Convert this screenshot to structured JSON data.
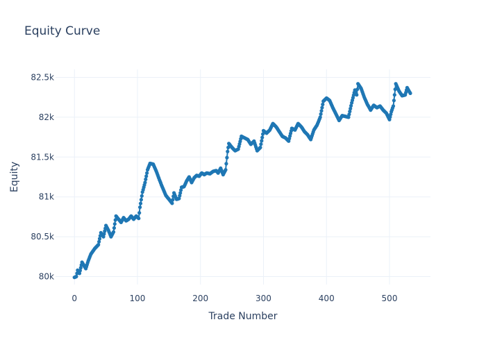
{
  "chart_data": {
    "type": "line",
    "title": "Equity Curve",
    "xlabel": "Trade Number",
    "ylabel": "Equity",
    "xlim": [
      -30,
      565
    ],
    "ylim": [
      79900,
      82600
    ],
    "xticks": [
      0,
      100,
      200,
      300,
      400,
      500
    ],
    "xtick_labels": [
      "0",
      "100",
      "200",
      "300",
      "400",
      "500"
    ],
    "yticks": [
      80000,
      80500,
      81000,
      81500,
      82000,
      82500
    ],
    "ytick_labels": [
      "80k",
      "80.5k",
      "81k",
      "81.5k",
      "82k",
      "82.5k"
    ],
    "grid": true,
    "legend": "none",
    "colors": {
      "line": "#1f77b4",
      "grid": "#ebf0f8",
      "text": "#2a3f5f"
    },
    "series": [
      {
        "mode": "lines+markers",
        "anchors": [
          [
            0,
            79990
          ],
          [
            3,
            80000
          ],
          [
            5,
            80080
          ],
          [
            8,
            80040
          ],
          [
            12,
            80180
          ],
          [
            18,
            80100
          ],
          [
            22,
            80200
          ],
          [
            26,
            80280
          ],
          [
            32,
            80350
          ],
          [
            38,
            80400
          ],
          [
            42,
            80550
          ],
          [
            46,
            80500
          ],
          [
            50,
            80640
          ],
          [
            54,
            80580
          ],
          [
            58,
            80500
          ],
          [
            62,
            80560
          ],
          [
            66,
            80760
          ],
          [
            70,
            80720
          ],
          [
            74,
            80680
          ],
          [
            78,
            80740
          ],
          [
            82,
            80700
          ],
          [
            86,
            80720
          ],
          [
            90,
            80760
          ],
          [
            94,
            80720
          ],
          [
            98,
            80760
          ],
          [
            102,
            80730
          ],
          [
            104,
            80870
          ],
          [
            108,
            81060
          ],
          [
            112,
            81180
          ],
          [
            116,
            81340
          ],
          [
            120,
            81420
          ],
          [
            125,
            81410
          ],
          [
            130,
            81320
          ],
          [
            138,
            81150
          ],
          [
            145,
            81020
          ],
          [
            150,
            80970
          ],
          [
            155,
            80920
          ],
          [
            158,
            81050
          ],
          [
            162,
            80970
          ],
          [
            166,
            80980
          ],
          [
            170,
            81120
          ],
          [
            174,
            81130
          ],
          [
            178,
            81200
          ],
          [
            182,
            81250
          ],
          [
            186,
            81180
          ],
          [
            190,
            81240
          ],
          [
            194,
            81270
          ],
          [
            198,
            81260
          ],
          [
            202,
            81300
          ],
          [
            206,
            81280
          ],
          [
            210,
            81300
          ],
          [
            215,
            81290
          ],
          [
            220,
            81320
          ],
          [
            225,
            81330
          ],
          [
            228,
            81300
          ],
          [
            232,
            81360
          ],
          [
            236,
            81280
          ],
          [
            240,
            81340
          ],
          [
            243,
            81570
          ],
          [
            245,
            81670
          ],
          [
            250,
            81620
          ],
          [
            255,
            81580
          ],
          [
            260,
            81600
          ],
          [
            265,
            81760
          ],
          [
            270,
            81740
          ],
          [
            275,
            81720
          ],
          [
            280,
            81660
          ],
          [
            285,
            81700
          ],
          [
            290,
            81580
          ],
          [
            295,
            81620
          ],
          [
            300,
            81830
          ],
          [
            305,
            81800
          ],
          [
            310,
            81840
          ],
          [
            315,
            81920
          ],
          [
            320,
            81880
          ],
          [
            330,
            81760
          ],
          [
            335,
            81740
          ],
          [
            340,
            81700
          ],
          [
            345,
            81860
          ],
          [
            350,
            81840
          ],
          [
            355,
            81920
          ],
          [
            360,
            81880
          ],
          [
            365,
            81820
          ],
          [
            370,
            81780
          ],
          [
            375,
            81720
          ],
          [
            380,
            81840
          ],
          [
            385,
            81900
          ],
          [
            390,
            82000
          ],
          [
            395,
            82200
          ],
          [
            400,
            82240
          ],
          [
            405,
            82210
          ],
          [
            410,
            82120
          ],
          [
            415,
            82040
          ],
          [
            420,
            81960
          ],
          [
            425,
            82020
          ],
          [
            430,
            82010
          ],
          [
            435,
            82000
          ],
          [
            440,
            82180
          ],
          [
            445,
            82340
          ],
          [
            448,
            82280
          ],
          [
            450,
            82420
          ],
          [
            455,
            82360
          ],
          [
            460,
            82250
          ],
          [
            465,
            82160
          ],
          [
            470,
            82090
          ],
          [
            475,
            82150
          ],
          [
            480,
            82120
          ],
          [
            485,
            82140
          ],
          [
            490,
            82090
          ],
          [
            495,
            82050
          ],
          [
            500,
            81970
          ],
          [
            503,
            82070
          ],
          [
            506,
            82140
          ],
          [
            510,
            82420
          ],
          [
            515,
            82330
          ],
          [
            520,
            82270
          ],
          [
            525,
            82280
          ],
          [
            528,
            82370
          ],
          [
            533,
            82300
          ]
        ]
      }
    ]
  }
}
